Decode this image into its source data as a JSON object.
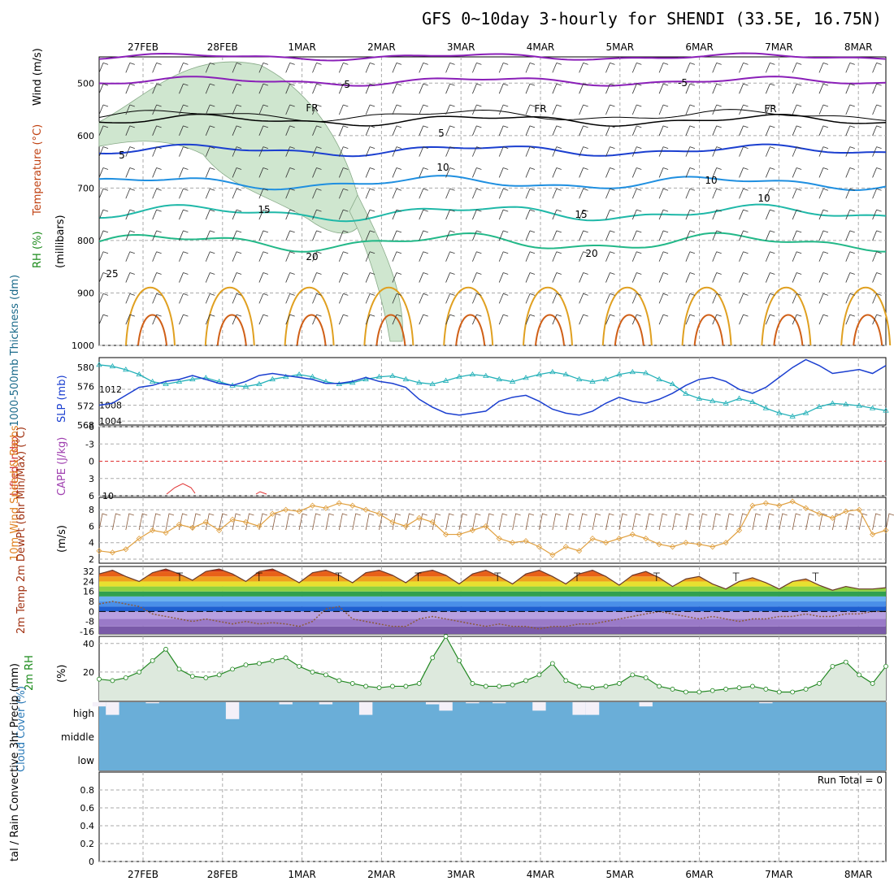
{
  "title": "GFS 0~10day 3-hourly for SHENDI (33.5E, 16.75N)",
  "dates": [
    "27FEB",
    "28FEB",
    "1MAR",
    "2MAR",
    "3MAR",
    "4MAR",
    "5MAR",
    "6MAR",
    "7MAR",
    "8MAR"
  ],
  "colors": {
    "grid": "#aaaaaa",
    "rh_fill": "#cfe6cf",
    "purple": "#8a1fb8",
    "black": "#000000",
    "blue": "#1b3fd0",
    "lightblue": "#1f8fe0",
    "teal": "#1fb8a8",
    "green": "#22b888",
    "orange": "#e0a020",
    "darkorange": "#d06018",
    "magenta": "#d0108a",
    "slp": "#1b3fd0",
    "thick": "#22b0b8",
    "wind": "#e0a040",
    "rh2m": "#228822",
    "cloud": "#6aaed8",
    "cloud_clear": "#f4f0f8"
  },
  "panels": {
    "upper": {
      "ylabel_rh": "RH (%)",
      "ylabel_temp": "Temperature (°C)",
      "ylabel_wind": "Wind (m/s)",
      "ylabel_mb": "(millibars)",
      "ticks": [
        "500",
        "600",
        "700",
        "800",
        "900",
        "1000"
      ],
      "contour_labels": [
        "-5",
        "-5",
        "FR",
        "FR",
        "FR",
        "5",
        "5",
        "10",
        "10",
        "10",
        "15",
        "15",
        "20",
        "20",
        "25"
      ]
    },
    "slp": {
      "ylabel": "1000-500mb Thickness (dm)",
      "ylabel2": "SLP (mb)",
      "left_ticks": [
        "580",
        "576",
        "572",
        "568"
      ],
      "right_ticks": [
        "1012",
        "1008",
        "1004"
      ]
    },
    "li": {
      "ylabel": "Lifted Index",
      "ylabel2": "CAPE (J/kg)",
      "ticks": [
        "-6",
        "-3",
        "0",
        "3",
        "6"
      ],
      "right_tick": "10"
    },
    "wind10": {
      "ylabel": "10m Wind Speed & Barbs",
      "ylabel2": "(m/s)",
      "ticks": [
        "8",
        "6",
        "4",
        "2"
      ]
    },
    "temp2m": {
      "ylabel": "2m Temp 2m DewPt (6hr Min/Max) (°C)",
      "ticks": [
        "32",
        "24",
        "16",
        "8",
        "0",
        "-8",
        "-16"
      ]
    },
    "rh2m": {
      "ylabel": "2m RH",
      "ylabel2": "(%)",
      "ticks": [
        "40",
        "20"
      ]
    },
    "cloud": {
      "ylabel": "Cloud Cover (%)",
      "levels": [
        "high",
        "middle",
        "low"
      ]
    },
    "precip": {
      "ylabel": "tal / Rain Convective 3hr Precip (mm)",
      "ticks": [
        "0.8",
        "0.6",
        "0.4",
        "0.2",
        "0"
      ],
      "run_total": "Run Total = 0"
    }
  },
  "chart_data": [
    {
      "type": "line",
      "name_ref": "slp",
      "ylim_left": [
        568,
        582
      ],
      "ylim_right": [
        1003,
        1020
      ],
      "series": [
        {
          "name": "Thickness (dm)",
          "values": [
            580.5,
            580.2,
            579.5,
            578.5,
            577.0,
            576.5,
            577.0,
            577.5,
            577.8,
            577.0,
            576.2,
            576.0,
            576.5,
            577.5,
            578.0,
            578.5,
            578.0,
            577.0,
            576.5,
            576.8,
            577.5,
            578.0,
            578.2,
            577.5,
            576.8,
            576.5,
            577.2,
            578.0,
            578.5,
            578.2,
            577.5,
            577.0,
            577.8,
            578.5,
            579.0,
            578.5,
            577.5,
            577.0,
            577.5,
            578.5,
            579.0,
            578.8,
            577.5,
            576.5,
            574.5,
            573.5,
            573.0,
            572.5,
            573.5,
            572.8,
            571.5,
            570.5,
            569.8,
            570.5,
            571.8,
            572.5,
            572.3,
            572.0,
            571.5,
            571.0
          ]
        },
        {
          "name": "SLP (mb)",
          "values": [
            1008.0,
            1008.5,
            1010.5,
            1012.5,
            1013.0,
            1014.0,
            1014.5,
            1015.5,
            1014.5,
            1013.5,
            1013.0,
            1014.0,
            1015.5,
            1016.0,
            1015.5,
            1015.0,
            1014.5,
            1013.5,
            1013.5,
            1014.0,
            1015.0,
            1014.0,
            1013.5,
            1012.5,
            1009.5,
            1007.5,
            1006.0,
            1005.5,
            1006.0,
            1006.5,
            1009.0,
            1010.0,
            1010.5,
            1009.0,
            1007.0,
            1006.0,
            1005.5,
            1006.5,
            1008.5,
            1010.0,
            1009.0,
            1008.5,
            1009.5,
            1011.0,
            1013.0,
            1014.5,
            1015.0,
            1014.0,
            1012.0,
            1011.0,
            1012.5,
            1015.0,
            1017.5,
            1019.5,
            1018.0,
            1016.0,
            1016.5,
            1017.0,
            1016.0,
            1018.0
          ]
        }
      ]
    },
    {
      "type": "line",
      "name_ref": "wind10",
      "ylim": [
        1.5,
        9.5
      ],
      "series": [
        {
          "name": "10m Wind Speed",
          "values": [
            3.0,
            2.8,
            3.2,
            4.5,
            5.5,
            5.2,
            6.2,
            5.8,
            6.5,
            5.5,
            6.8,
            6.5,
            6.0,
            7.5,
            8.0,
            7.8,
            8.5,
            8.2,
            8.8,
            8.5,
            8.0,
            7.5,
            6.5,
            6.0,
            7.0,
            6.5,
            5.0,
            5.0,
            5.5,
            6.0,
            4.5,
            4.0,
            4.2,
            3.5,
            2.5,
            3.5,
            3.0,
            4.5,
            4.0,
            4.5,
            5.0,
            4.5,
            3.8,
            3.5,
            4.0,
            3.8,
            3.5,
            4.0,
            5.5,
            8.5,
            8.8,
            8.5,
            9.0,
            8.2,
            7.5,
            7.0,
            7.8,
            8.0,
            5.0,
            5.5
          ]
        }
      ]
    },
    {
      "type": "line",
      "name_ref": "temp2m",
      "ylim": [
        -18,
        36
      ],
      "series": [
        {
          "name": "2m Temp",
          "values": [
            30,
            33,
            28,
            24,
            31,
            34,
            30,
            25,
            32,
            34,
            30,
            24,
            32,
            34,
            29,
            23,
            31,
            33,
            29,
            23,
            31,
            33,
            29,
            23,
            31,
            33,
            29,
            22,
            30,
            33,
            28,
            22,
            30,
            33,
            28,
            22,
            30,
            33,
            28,
            21,
            29,
            32,
            27,
            20,
            26,
            28,
            22,
            18,
            24,
            27,
            23,
            18,
            24,
            26,
            21,
            17,
            20,
            18,
            18,
            19
          ]
        },
        {
          "name": "2m DewPt",
          "values": [
            6,
            8,
            6,
            4,
            -2,
            -4,
            -6,
            -8,
            -6,
            -8,
            -10,
            -8,
            -10,
            -9,
            -10,
            -12,
            -8,
            2,
            4,
            -6,
            -8,
            -10,
            -12,
            -12,
            -6,
            -4,
            -6,
            -8,
            -10,
            -12,
            -10,
            -12,
            -12,
            -14,
            -12,
            -12,
            -10,
            -10,
            -8,
            -6,
            -4,
            -2,
            0,
            -2,
            -4,
            -6,
            -4,
            -6,
            -8,
            -6,
            -6,
            -4,
            -4,
            -2,
            -4,
            -4,
            -2,
            -2,
            0,
            0
          ]
        }
      ]
    },
    {
      "type": "area",
      "name_ref": "rh2m",
      "ylim": [
        0,
        45
      ],
      "series": [
        {
          "name": "2m RH",
          "values": [
            15,
            14,
            16,
            20,
            28,
            36,
            22,
            17,
            16,
            18,
            22,
            25,
            26,
            28,
            30,
            24,
            20,
            18,
            14,
            12,
            10,
            9,
            10,
            10,
            12,
            30,
            45,
            28,
            12,
            10,
            10,
            11,
            14,
            18,
            26,
            14,
            10,
            9,
            10,
            12,
            18,
            16,
            10,
            8,
            6,
            6,
            7,
            8,
            9,
            10,
            8,
            6,
            6,
            8,
            12,
            24,
            27,
            18,
            12,
            24
          ]
        }
      ]
    },
    {
      "type": "bar",
      "name_ref": "cloud_high",
      "ylim": [
        0,
        100
      ],
      "series": [
        {
          "name": "Cloud Cover high",
          "values": [
            80,
            40,
            100,
            100,
            95,
            100,
            100,
            100,
            100,
            100,
            20,
            100,
            100,
            100,
            90,
            100,
            100,
            90,
            100,
            100,
            40,
            100,
            100,
            100,
            100,
            90,
            60,
            100,
            95,
            100,
            95,
            100,
            100,
            60,
            100,
            100,
            40,
            40,
            100,
            100,
            100,
            80,
            100,
            100,
            100,
            100,
            100,
            100,
            100,
            100,
            95,
            100,
            100,
            100,
            100,
            100,
            100,
            100,
            100,
            100
          ]
        }
      ]
    },
    {
      "type": "bar",
      "name_ref": "precip",
      "ylim": [
        0,
        1
      ],
      "series": [
        {
          "name": "3hr Precip",
          "values": [
            0,
            0,
            0,
            0,
            0,
            0,
            0,
            0,
            0,
            0,
            0,
            0,
            0,
            0,
            0,
            0,
            0,
            0,
            0,
            0,
            0,
            0,
            0,
            0,
            0,
            0,
            0,
            0,
            0,
            0,
            0,
            0,
            0,
            0,
            0,
            0,
            0,
            0,
            0,
            0,
            0,
            0,
            0,
            0,
            0,
            0,
            0,
            0,
            0,
            0,
            0,
            0,
            0,
            0,
            0,
            0,
            0,
            0,
            0,
            0
          ]
        }
      ]
    }
  ]
}
